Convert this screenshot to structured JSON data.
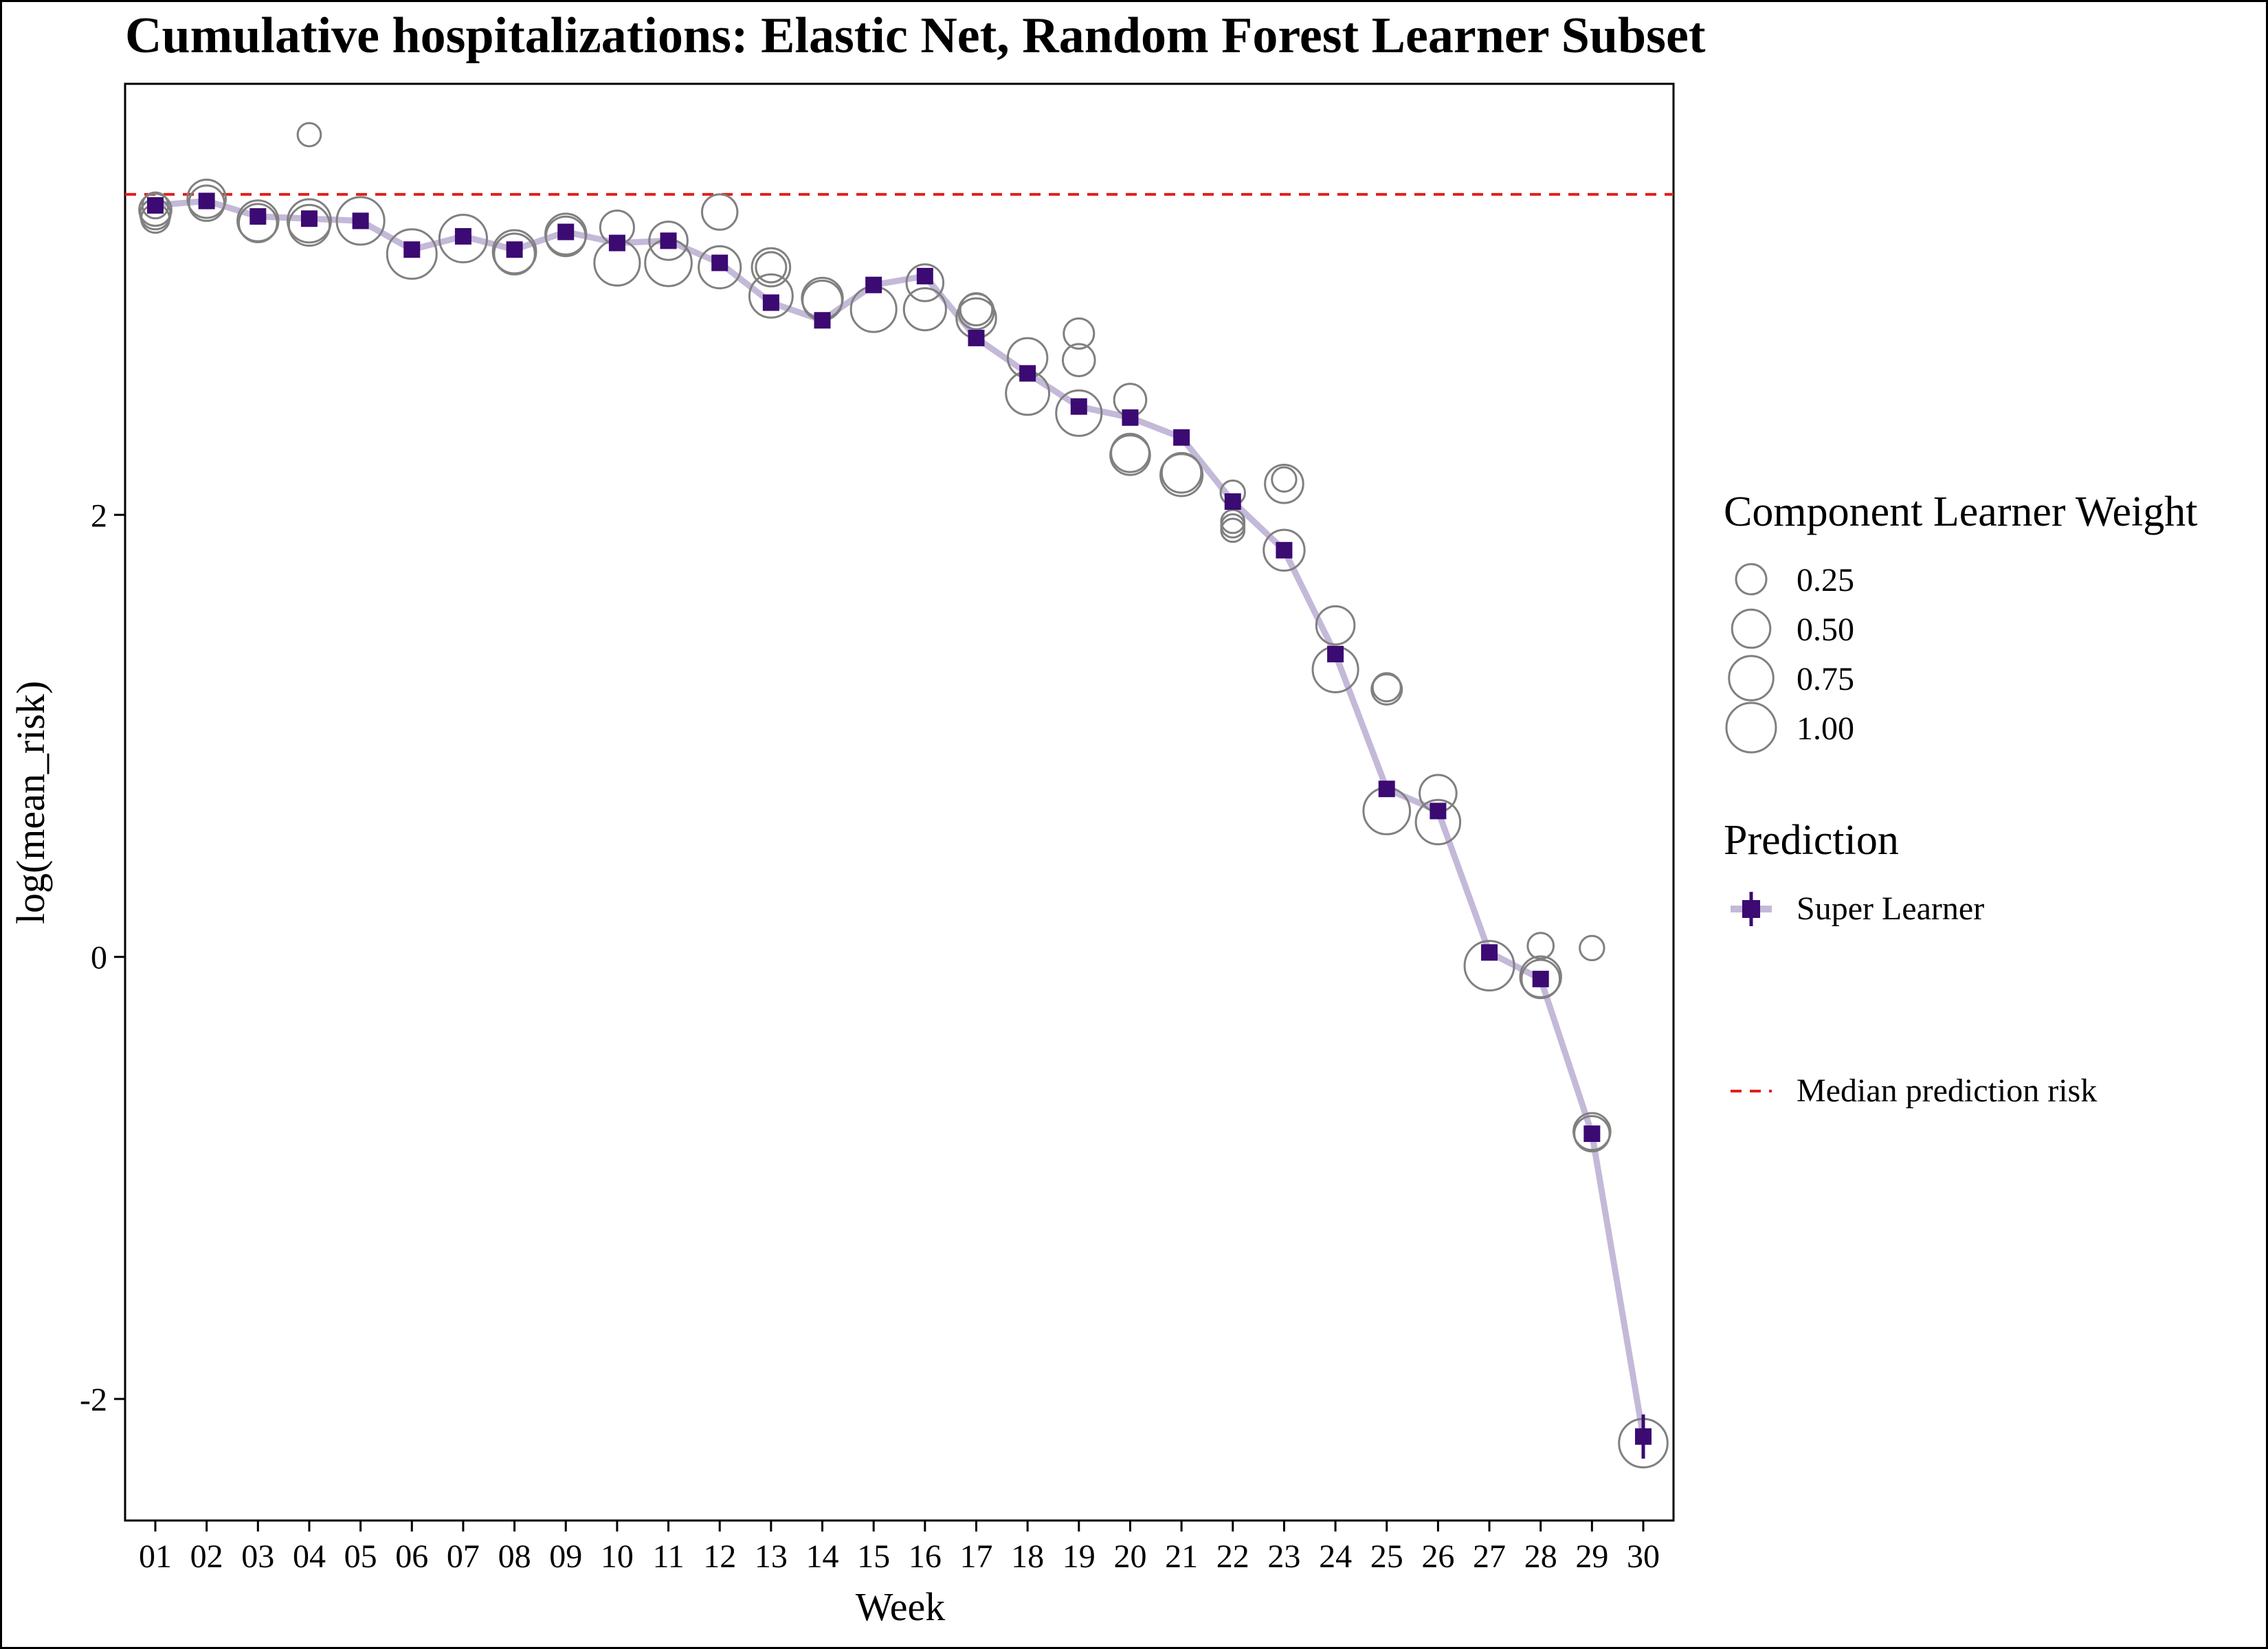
{
  "chart_data": {
    "type": "scatter",
    "title": "Cumulative hospitalizations: Elastic Net, Random Forest Learner Subset",
    "xlabel": "Week",
    "ylabel": "log(mean_risk)",
    "categories": [
      "01",
      "02",
      "03",
      "04",
      "05",
      "06",
      "07",
      "08",
      "09",
      "10",
      "11",
      "12",
      "13",
      "14",
      "15",
      "16",
      "17",
      "18",
      "19",
      "20",
      "21",
      "22",
      "23",
      "24",
      "25",
      "26",
      "27",
      "28",
      "29",
      "30"
    ],
    "ylim": [
      -2.55,
      3.95
    ],
    "yticks": [
      -2,
      0,
      2
    ],
    "ytick_labels": [
      "-2",
      "0",
      "2"
    ],
    "median_prediction_risk": 3.45,
    "series": [
      {
        "name": "Super Learner",
        "values": [
          3.4,
          3.42,
          3.35,
          3.34,
          3.33,
          3.2,
          3.26,
          3.2,
          3.28,
          3.23,
          3.24,
          3.14,
          2.96,
          2.88,
          3.04,
          3.08,
          2.8,
          2.64,
          2.49,
          2.44,
          2.35,
          2.06,
          1.84,
          1.37,
          0.76,
          0.66,
          0.02,
          -0.1,
          -0.8,
          -2.17
        ],
        "error_bar_last": [
          -2.07,
          -2.27
        ]
      }
    ],
    "component_learners": [
      {
        "week": 1,
        "values": [
          3.38,
          3.36,
          3.34,
          3.4
        ],
        "weights": [
          0.3,
          0.25,
          0.2,
          0.15
        ]
      },
      {
        "week": 2,
        "values": [
          3.43,
          3.41
        ],
        "weights": [
          0.5,
          0.4
        ]
      },
      {
        "week": 3,
        "values": [
          3.33,
          3.32
        ],
        "weights": [
          0.6,
          0.5
        ]
      },
      {
        "week": 4,
        "values": [
          3.33,
          3.31,
          3.72
        ],
        "weights": [
          0.7,
          0.6,
          0.1
        ]
      },
      {
        "week": 5,
        "values": [
          3.33
        ],
        "weights": [
          0.9
        ]
      },
      {
        "week": 6,
        "values": [
          3.18
        ],
        "weights": [
          1.0
        ]
      },
      {
        "week": 7,
        "values": [
          3.25
        ],
        "weights": [
          0.9
        ]
      },
      {
        "week": 8,
        "values": [
          3.19,
          3.18
        ],
        "weights": [
          0.7,
          0.6
        ]
      },
      {
        "week": 9,
        "values": [
          3.27,
          3.26
        ],
        "weights": [
          0.6,
          0.55
        ]
      },
      {
        "week": 10,
        "values": [
          3.14,
          3.3
        ],
        "weights": [
          0.8,
          0.35
        ]
      },
      {
        "week": 11,
        "values": [
          3.14,
          3.24
        ],
        "weights": [
          0.85,
          0.5
        ]
      },
      {
        "week": 12,
        "values": [
          3.12,
          3.37
        ],
        "weights": [
          0.65,
          0.4
        ]
      },
      {
        "week": 13,
        "values": [
          2.99,
          3.12,
          3.12
        ],
        "weights": [
          0.7,
          0.5,
          0.25
        ]
      },
      {
        "week": 14,
        "values": [
          2.98,
          2.97
        ],
        "weights": [
          0.6,
          0.55
        ]
      },
      {
        "week": 15,
        "values": [
          2.93
        ],
        "weights": [
          0.8
        ]
      },
      {
        "week": 16,
        "values": [
          2.93,
          3.05
        ],
        "weights": [
          0.65,
          0.45
        ]
      },
      {
        "week": 17,
        "values": [
          2.89,
          2.92,
          2.93
        ],
        "weights": [
          0.55,
          0.4,
          0.3
        ]
      },
      {
        "week": 18,
        "values": [
          2.55,
          2.71
        ],
        "weights": [
          0.7,
          0.55
        ]
      },
      {
        "week": 19,
        "values": [
          2.46,
          2.7,
          2.82
        ],
        "weights": [
          0.8,
          0.3,
          0.25
        ]
      },
      {
        "week": 20,
        "values": [
          2.27,
          2.28,
          2.52
        ],
        "weights": [
          0.55,
          0.5,
          0.3
        ]
      },
      {
        "week": 21,
        "values": [
          2.18,
          2.19
        ],
        "weights": [
          0.65,
          0.55
        ]
      },
      {
        "week": 22,
        "values": [
          1.93,
          1.95,
          1.97,
          2.1
        ],
        "weights": [
          0.1,
          0.1,
          0.1,
          0.12
        ]
      },
      {
        "week": 23,
        "values": [
          1.84,
          2.14,
          2.16
        ],
        "weights": [
          0.6,
          0.5,
          0.12
        ]
      },
      {
        "week": 24,
        "values": [
          1.3,
          1.5
        ],
        "weights": [
          0.8,
          0.5
        ]
      },
      {
        "week": 25,
        "values": [
          0.66,
          1.21,
          1.22
        ],
        "weights": [
          0.85,
          0.25,
          0.2
        ]
      },
      {
        "week": 26,
        "values": [
          0.61,
          0.74
        ],
        "weights": [
          0.75,
          0.45
        ]
      },
      {
        "week": 27,
        "values": [
          -0.04
        ],
        "weights": [
          1.0
        ]
      },
      {
        "week": 28,
        "values": [
          -0.09,
          -0.1,
          0.05
        ],
        "weights": [
          0.6,
          0.5,
          0.15
        ]
      },
      {
        "week": 29,
        "values": [
          -0.79,
          -0.8,
          0.04
        ],
        "weights": [
          0.45,
          0.4,
          0.12
        ]
      },
      {
        "week": 30,
        "values": [
          -2.2
        ],
        "weights": [
          0.95
        ]
      }
    ],
    "legend": {
      "size_title": "Component Learner Weight",
      "size_entries": [
        "0.25",
        "0.50",
        "0.75",
        "1.00"
      ],
      "size_values": [
        0.25,
        0.5,
        0.75,
        1.0
      ],
      "prediction_title": "Prediction",
      "prediction_label": "Super Learner",
      "median_label": "Median prediction risk",
      "placement": "right"
    },
    "grid": false,
    "colors": {
      "super_learner_point": "#3b0a72",
      "super_learner_line": "#c4b9d8",
      "component_circle": "#808080",
      "median_line": "#e0201b"
    }
  }
}
